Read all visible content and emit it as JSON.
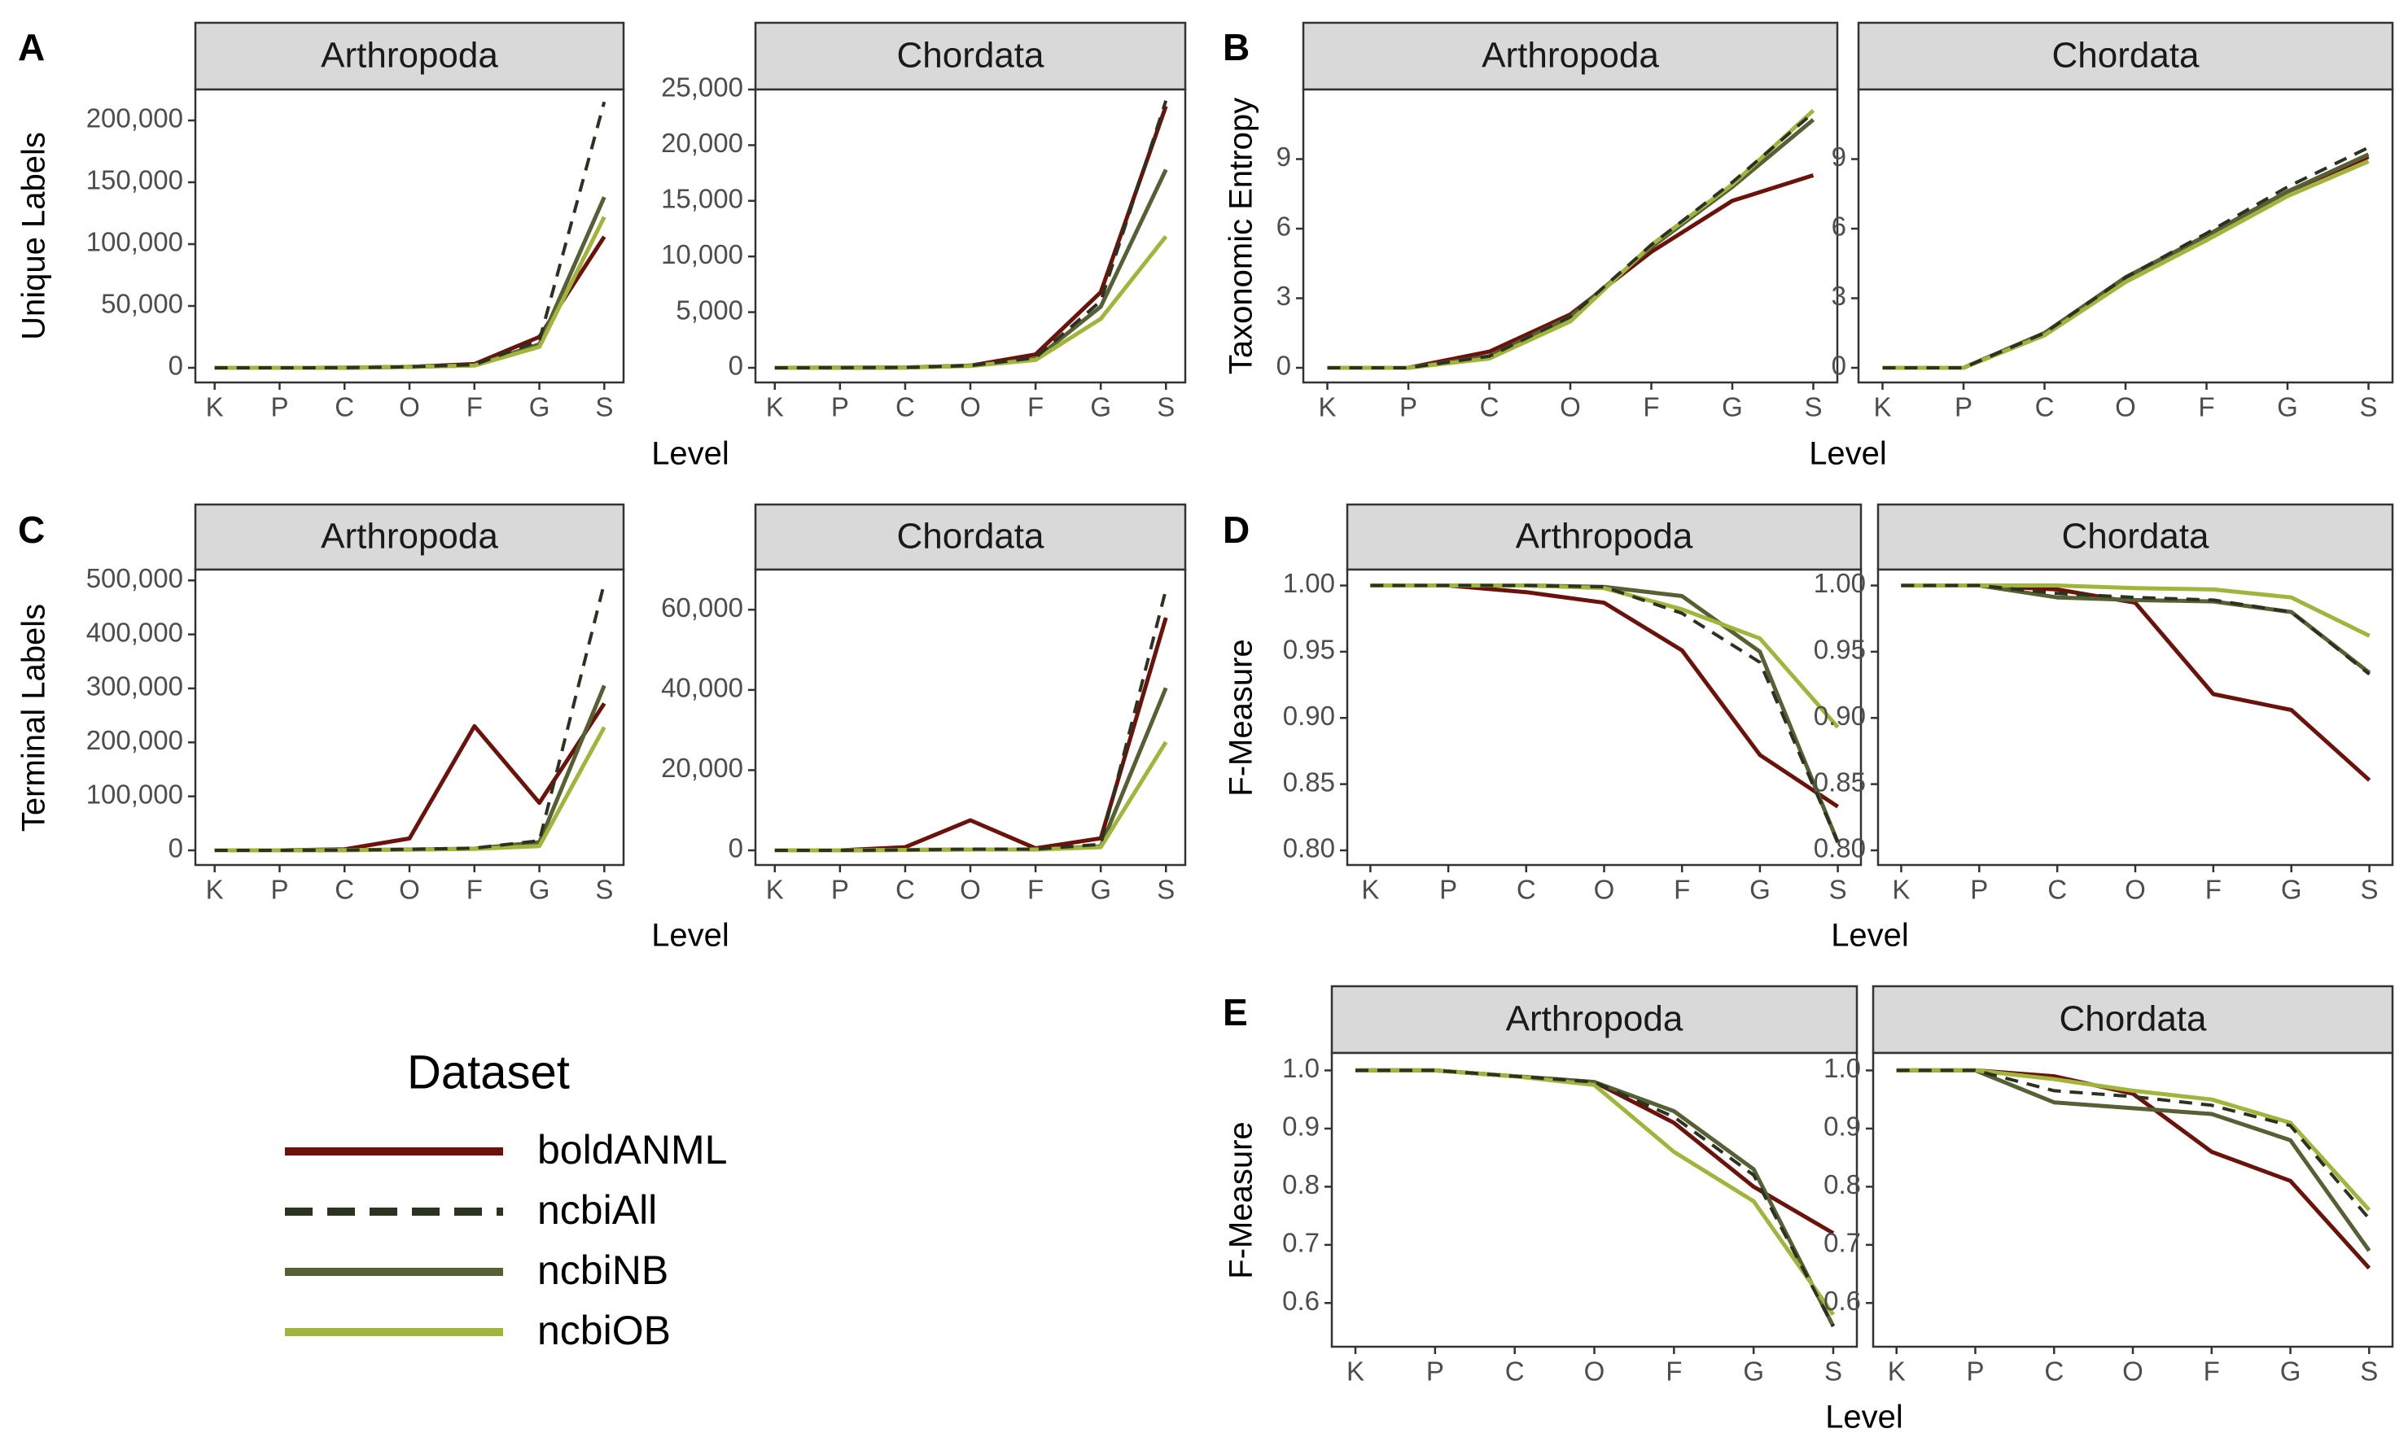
{
  "colors": {
    "boldANML": "#6b120a",
    "ncbiAll": "#2b3320",
    "ncbiNB": "#556035",
    "ncbiOB": "#a2b43c"
  },
  "legend": {
    "title": "Dataset",
    "entries": [
      {
        "name": "boldANML",
        "style": "solid"
      },
      {
        "name": "ncbiAll",
        "style": "dashed"
      },
      {
        "name": "ncbiNB",
        "style": "solid"
      },
      {
        "name": "ncbiOB",
        "style": "solid"
      }
    ]
  },
  "chart_data": [
    {
      "panel": "A",
      "type": "line",
      "facet": "Arthropoda",
      "ylabel": "Unique Labels",
      "xlabel": "Level",
      "categories": [
        "K",
        "P",
        "C",
        "O",
        "F",
        "G",
        "S"
      ],
      "ylim": [
        0,
        225000
      ],
      "yticks": [
        0,
        50000,
        100000,
        150000,
        200000
      ],
      "ytick_labels": [
        "0",
        "50,000",
        "100,000",
        "150,000",
        "200,000"
      ],
      "series": [
        {
          "name": "boldANML",
          "values": [
            1,
            20,
            80,
            800,
            3000,
            25000,
            106000
          ]
        },
        {
          "name": "ncbiAll",
          "values": [
            1,
            20,
            80,
            800,
            2500,
            22000,
            215000
          ]
        },
        {
          "name": "ncbiNB",
          "values": [
            1,
            20,
            80,
            700,
            2000,
            19000,
            138000
          ]
        },
        {
          "name": "ncbiOB",
          "values": [
            1,
            20,
            80,
            700,
            1800,
            17000,
            122000
          ]
        }
      ]
    },
    {
      "panel": "A",
      "type": "line",
      "facet": "Chordata",
      "xlabel": "Level",
      "categories": [
        "K",
        "P",
        "C",
        "O",
        "F",
        "G",
        "S"
      ],
      "ylim": [
        0,
        25000
      ],
      "yticks": [
        0,
        5000,
        10000,
        15000,
        20000,
        25000
      ],
      "ytick_labels": [
        "0",
        "5,000",
        "10,000",
        "15,000",
        "20,000",
        "25,000"
      ],
      "series": [
        {
          "name": "boldANML",
          "values": [
            1,
            5,
            30,
            200,
            1200,
            6800,
            23500
          ]
        },
        {
          "name": "ncbiAll",
          "values": [
            1,
            5,
            30,
            200,
            900,
            6000,
            24000
          ]
        },
        {
          "name": "ncbiNB",
          "values": [
            1,
            5,
            30,
            180,
            800,
            5500,
            17800
          ]
        },
        {
          "name": "ncbiOB",
          "values": [
            1,
            5,
            30,
            170,
            700,
            4400,
            11800
          ]
        }
      ]
    },
    {
      "panel": "B",
      "type": "line",
      "facet": "Arthropoda",
      "ylabel": "Taxonomic Entropy",
      "xlabel": "Level",
      "categories": [
        "K",
        "P",
        "C",
        "O",
        "F",
        "G",
        "S"
      ],
      "ylim": [
        0,
        12
      ],
      "yticks": [
        0,
        3,
        6,
        9
      ],
      "ytick_labels": [
        "0",
        "3",
        "6",
        "9"
      ],
      "series": [
        {
          "name": "boldANML",
          "values": [
            0,
            0,
            0.7,
            2.3,
            5.0,
            7.2,
            8.3
          ]
        },
        {
          "name": "ncbiAll",
          "values": [
            0,
            0,
            0.5,
            2.2,
            5.3,
            8.0,
            11.0
          ]
        },
        {
          "name": "ncbiNB",
          "values": [
            0,
            0,
            0.5,
            2.2,
            5.2,
            7.8,
            10.7
          ]
        },
        {
          "name": "ncbiOB",
          "values": [
            0,
            0,
            0.4,
            2.0,
            5.3,
            7.9,
            11.1
          ]
        }
      ]
    },
    {
      "panel": "B",
      "type": "line",
      "facet": "Chordata",
      "xlabel": "Level",
      "categories": [
        "K",
        "P",
        "C",
        "O",
        "F",
        "G",
        "S"
      ],
      "ylim": [
        0,
        12
      ],
      "yticks": [
        0,
        3,
        6,
        9
      ],
      "ytick_labels": [
        "0",
        "3",
        "6",
        "9"
      ],
      "series": [
        {
          "name": "boldANML",
          "values": [
            0,
            0,
            1.5,
            3.9,
            5.7,
            7.6,
            9.1
          ]
        },
        {
          "name": "ncbiAll",
          "values": [
            0,
            0,
            1.5,
            3.9,
            5.8,
            7.8,
            9.5
          ]
        },
        {
          "name": "ncbiNB",
          "values": [
            0,
            0,
            1.5,
            3.9,
            5.7,
            7.6,
            9.2
          ]
        },
        {
          "name": "ncbiOB",
          "values": [
            0,
            0,
            1.4,
            3.7,
            5.5,
            7.4,
            8.9
          ]
        }
      ]
    },
    {
      "panel": "C",
      "type": "line",
      "facet": "Arthropoda",
      "ylabel": "Terminal Labels",
      "xlabel": "Level",
      "categories": [
        "K",
        "P",
        "C",
        "O",
        "F",
        "G",
        "S"
      ],
      "ylim": [
        0,
        520000
      ],
      "yticks": [
        0,
        100000,
        200000,
        300000,
        400000,
        500000
      ],
      "ytick_labels": [
        "0",
        "100,000",
        "200,000",
        "300,000",
        "400,000",
        "500,000"
      ],
      "series": [
        {
          "name": "boldANML",
          "values": [
            0,
            0,
            2000,
            22000,
            230000,
            88000,
            272000
          ]
        },
        {
          "name": "ncbiAll",
          "values": [
            0,
            0,
            500,
            2000,
            4000,
            18000,
            495000
          ]
        },
        {
          "name": "ncbiNB",
          "values": [
            0,
            0,
            500,
            1500,
            3000,
            15000,
            305000
          ]
        },
        {
          "name": "ncbiOB",
          "values": [
            0,
            0,
            400,
            1200,
            2500,
            8000,
            228000
          ]
        }
      ]
    },
    {
      "panel": "C",
      "type": "line",
      "facet": "Chordata",
      "xlabel": "Level",
      "categories": [
        "K",
        "P",
        "C",
        "O",
        "F",
        "G",
        "S"
      ],
      "ylim": [
        0,
        70000
      ],
      "yticks": [
        0,
        20000,
        40000,
        60000
      ],
      "ytick_labels": [
        "0",
        "20,000",
        "40,000",
        "60,000"
      ],
      "series": [
        {
          "name": "boldANML",
          "values": [
            0,
            0,
            800,
            7500,
            500,
            3000,
            58000
          ]
        },
        {
          "name": "ncbiAll",
          "values": [
            0,
            0,
            100,
            300,
            300,
            1500,
            65000
          ]
        },
        {
          "name": "ncbiNB",
          "values": [
            0,
            0,
            100,
            200,
            200,
            1000,
            40500
          ]
        },
        {
          "name": "ncbiOB",
          "values": [
            0,
            0,
            100,
            200,
            200,
            800,
            27000
          ]
        }
      ]
    },
    {
      "panel": "D",
      "type": "line",
      "facet": "Arthropoda",
      "ylabel": "F-Measure",
      "xlabel": "Level",
      "categories": [
        "K",
        "P",
        "C",
        "O",
        "F",
        "G",
        "S"
      ],
      "ylim": [
        0.8,
        1.012
      ],
      "yticks": [
        0.8,
        0.85,
        0.9,
        0.95,
        1.0
      ],
      "ytick_labels": [
        "0.80",
        "0.85",
        "0.90",
        "0.95",
        "1.00"
      ],
      "series": [
        {
          "name": "boldANML",
          "values": [
            1.0,
            1.0,
            0.995,
            0.987,
            0.951,
            0.872,
            0.833
          ]
        },
        {
          "name": "ncbiAll",
          "values": [
            1.0,
            1.0,
            1.0,
            0.999,
            0.979,
            0.942,
            0.806
          ]
        },
        {
          "name": "ncbiNB",
          "values": [
            1.0,
            1.0,
            1.0,
            0.999,
            0.992,
            0.95,
            0.806
          ]
        },
        {
          "name": "ncbiOB",
          "values": [
            1.0,
            1.0,
            1.0,
            0.998,
            0.982,
            0.96,
            0.893
          ]
        }
      ]
    },
    {
      "panel": "D",
      "type": "line",
      "facet": "Chordata",
      "xlabel": "Level",
      "categories": [
        "K",
        "P",
        "C",
        "O",
        "F",
        "G",
        "S"
      ],
      "ylim": [
        0.8,
        1.012
      ],
      "yticks": [
        0.8,
        0.85,
        0.9,
        0.95,
        1.0
      ],
      "ytick_labels": [
        "0.80",
        "0.85",
        "0.90",
        "0.95",
        "1.00"
      ],
      "series": [
        {
          "name": "boldANML",
          "values": [
            1.0,
            1.0,
            0.997,
            0.987,
            0.918,
            0.906,
            0.853
          ]
        },
        {
          "name": "ncbiAll",
          "values": [
            1.0,
            1.0,
            0.994,
            0.991,
            0.989,
            0.98,
            0.933
          ]
        },
        {
          "name": "ncbiNB",
          "values": [
            1.0,
            1.0,
            0.991,
            0.989,
            0.988,
            0.98,
            0.934
          ]
        },
        {
          "name": "ncbiOB",
          "values": [
            1.0,
            1.0,
            1.0,
            0.998,
            0.997,
            0.991,
            0.962
          ]
        }
      ]
    },
    {
      "panel": "E",
      "type": "line",
      "facet": "Arthropoda",
      "ylabel": "F-Measure",
      "xlabel": "Level",
      "categories": [
        "K",
        "P",
        "C",
        "O",
        "F",
        "G",
        "S"
      ],
      "ylim": [
        0.55,
        1.03
      ],
      "yticks": [
        0.6,
        0.7,
        0.8,
        0.9,
        1.0
      ],
      "ytick_labels": [
        "0.6",
        "0.7",
        "0.8",
        "0.9",
        "1.0"
      ],
      "series": [
        {
          "name": "boldANML",
          "values": [
            1.0,
            1.0,
            0.99,
            0.98,
            0.91,
            0.8,
            0.72
          ]
        },
        {
          "name": "ncbiAll",
          "values": [
            1.0,
            1.0,
            0.99,
            0.98,
            0.92,
            0.82,
            0.56
          ]
        },
        {
          "name": "ncbiNB",
          "values": [
            1.0,
            1.0,
            0.99,
            0.98,
            0.93,
            0.83,
            0.56
          ]
        },
        {
          "name": "ncbiOB",
          "values": [
            1.0,
            1.0,
            0.99,
            0.975,
            0.86,
            0.775,
            0.58
          ]
        }
      ]
    },
    {
      "panel": "E",
      "type": "line",
      "facet": "Chordata",
      "xlabel": "Level",
      "categories": [
        "K",
        "P",
        "C",
        "O",
        "F",
        "G",
        "S"
      ],
      "ylim": [
        0.55,
        1.03
      ],
      "yticks": [
        0.6,
        0.7,
        0.8,
        0.9,
        1.0
      ],
      "ytick_labels": [
        "0.6",
        "0.7",
        "0.8",
        "0.9",
        "1.0"
      ],
      "series": [
        {
          "name": "boldANML",
          "values": [
            1.0,
            1.0,
            0.99,
            0.96,
            0.86,
            0.81,
            0.66
          ]
        },
        {
          "name": "ncbiAll",
          "values": [
            1.0,
            1.0,
            0.965,
            0.955,
            0.94,
            0.905,
            0.745
          ]
        },
        {
          "name": "ncbiNB",
          "values": [
            1.0,
            1.0,
            0.945,
            0.935,
            0.925,
            0.88,
            0.69
          ]
        },
        {
          "name": "ncbiOB",
          "values": [
            1.0,
            1.0,
            0.985,
            0.965,
            0.95,
            0.91,
            0.76
          ]
        }
      ]
    }
  ]
}
